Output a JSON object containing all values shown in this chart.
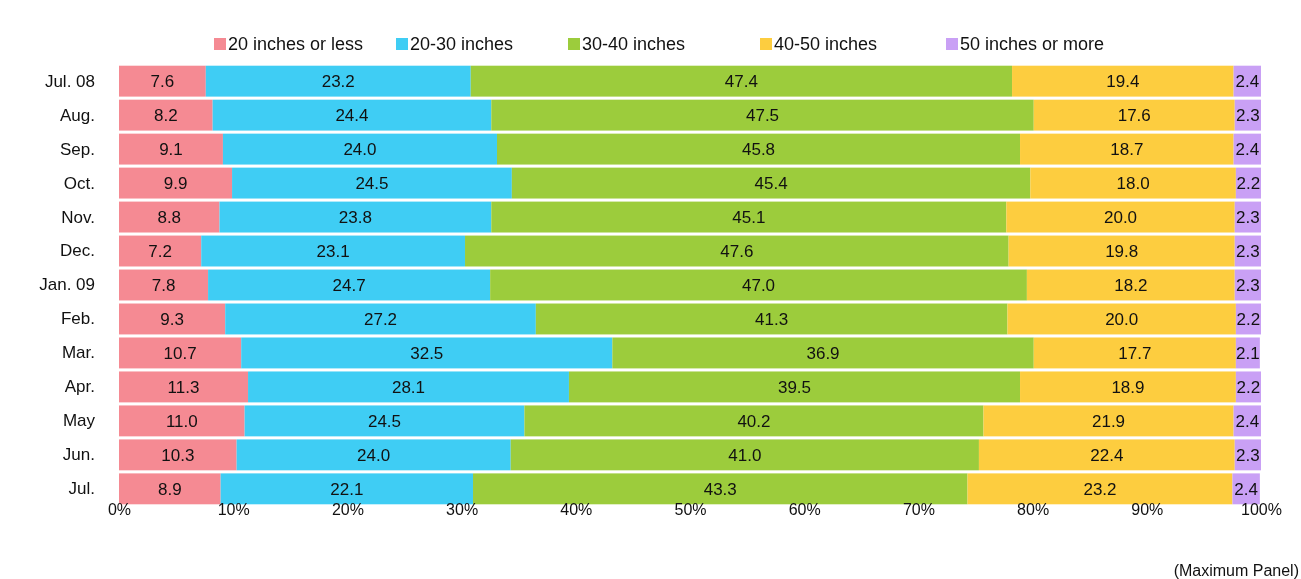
{
  "chart_data": {
    "type": "bar",
    "orientation": "horizontal",
    "stacked": true,
    "legend": "top",
    "grid": false,
    "xlabel": "(Maximum Panel)",
    "categories": [
      "Jul. 08",
      "Aug.",
      "Sep.",
      "Oct.",
      "Nov.",
      "Dec.",
      "Jan. 09",
      "Feb.",
      "Mar.",
      "Apr.",
      "May",
      "Jun.",
      "Jul."
    ],
    "xlim": [
      0,
      100
    ],
    "xticks": [
      {
        "value": 0,
        "label": "0%"
      },
      {
        "value": 10,
        "label": "10%"
      },
      {
        "value": 20,
        "label": "20%"
      },
      {
        "value": 30,
        "label": "30%"
      },
      {
        "value": 40,
        "label": "40%"
      },
      {
        "value": 50,
        "label": "50%"
      },
      {
        "value": 60,
        "label": "60%"
      },
      {
        "value": 70,
        "label": "70%"
      },
      {
        "value": 80,
        "label": "80%"
      },
      {
        "value": 90,
        "label": "90%"
      },
      {
        "value": 100,
        "label": "100%"
      }
    ],
    "series": [
      {
        "name": "20 inches or less",
        "color": "#f58a93",
        "values": [
          7.6,
          8.2,
          9.1,
          9.9,
          8.8,
          7.2,
          7.8,
          9.3,
          10.7,
          11.3,
          11.0,
          10.3,
          8.9
        ],
        "value_labels": [
          "7.6",
          "8.2",
          "9.1",
          "9.9",
          "8.8",
          "7.2",
          "7.8",
          "9.3",
          "10.7",
          "11.3",
          "11.0",
          "10.3",
          "8.9"
        ]
      },
      {
        "name": "20-30 inches",
        "color": "#3fcdf4",
        "values": [
          23.2,
          24.4,
          24.0,
          24.5,
          23.8,
          23.1,
          24.7,
          27.2,
          32.5,
          28.1,
          24.5,
          24.0,
          22.1
        ],
        "value_labels": [
          "23.2",
          "24.4",
          "24.0",
          "24.5",
          "23.8",
          "23.1",
          "24.7",
          "27.2",
          "32.5",
          "28.1",
          "24.5",
          "24.0",
          "22.1"
        ]
      },
      {
        "name": "30-40 inches",
        "color": "#9ccc3c",
        "values": [
          47.4,
          47.5,
          45.8,
          45.4,
          45.1,
          47.6,
          47.0,
          41.3,
          36.9,
          39.5,
          40.2,
          41.0,
          43.3
        ],
        "value_labels": [
          "47.4",
          "47.5",
          "45.8",
          "45.4",
          "45.1",
          "47.6",
          "47.0",
          "41.3",
          "36.9",
          "39.5",
          "40.2",
          "41.0",
          "43.3"
        ]
      },
      {
        "name": "40-50 inches",
        "color": "#fdcd3f",
        "values": [
          19.4,
          17.6,
          18.7,
          18.0,
          20.0,
          19.8,
          18.2,
          20.0,
          17.7,
          18.9,
          21.9,
          22.4,
          23.2
        ],
        "value_labels": [
          "19.4",
          "17.6",
          "18.7",
          "18.0",
          "20.0",
          "19.8",
          "18.2",
          "20.0",
          "17.7",
          "18.9",
          "21.9",
          "22.4",
          "23.2"
        ]
      },
      {
        "name": "50 inches or more",
        "color": "#c9a0f5",
        "values": [
          2.4,
          2.3,
          2.4,
          2.2,
          2.3,
          2.3,
          2.3,
          2.2,
          2.1,
          2.2,
          2.4,
          2.3,
          2.4
        ],
        "value_labels": [
          "2.4",
          "2.3",
          "2.4",
          "2.2",
          "2.3",
          "2.3",
          "2.3",
          "2.2",
          "2.1",
          "2.2",
          "2.4",
          "2.3",
          "2.4"
        ]
      }
    ]
  }
}
